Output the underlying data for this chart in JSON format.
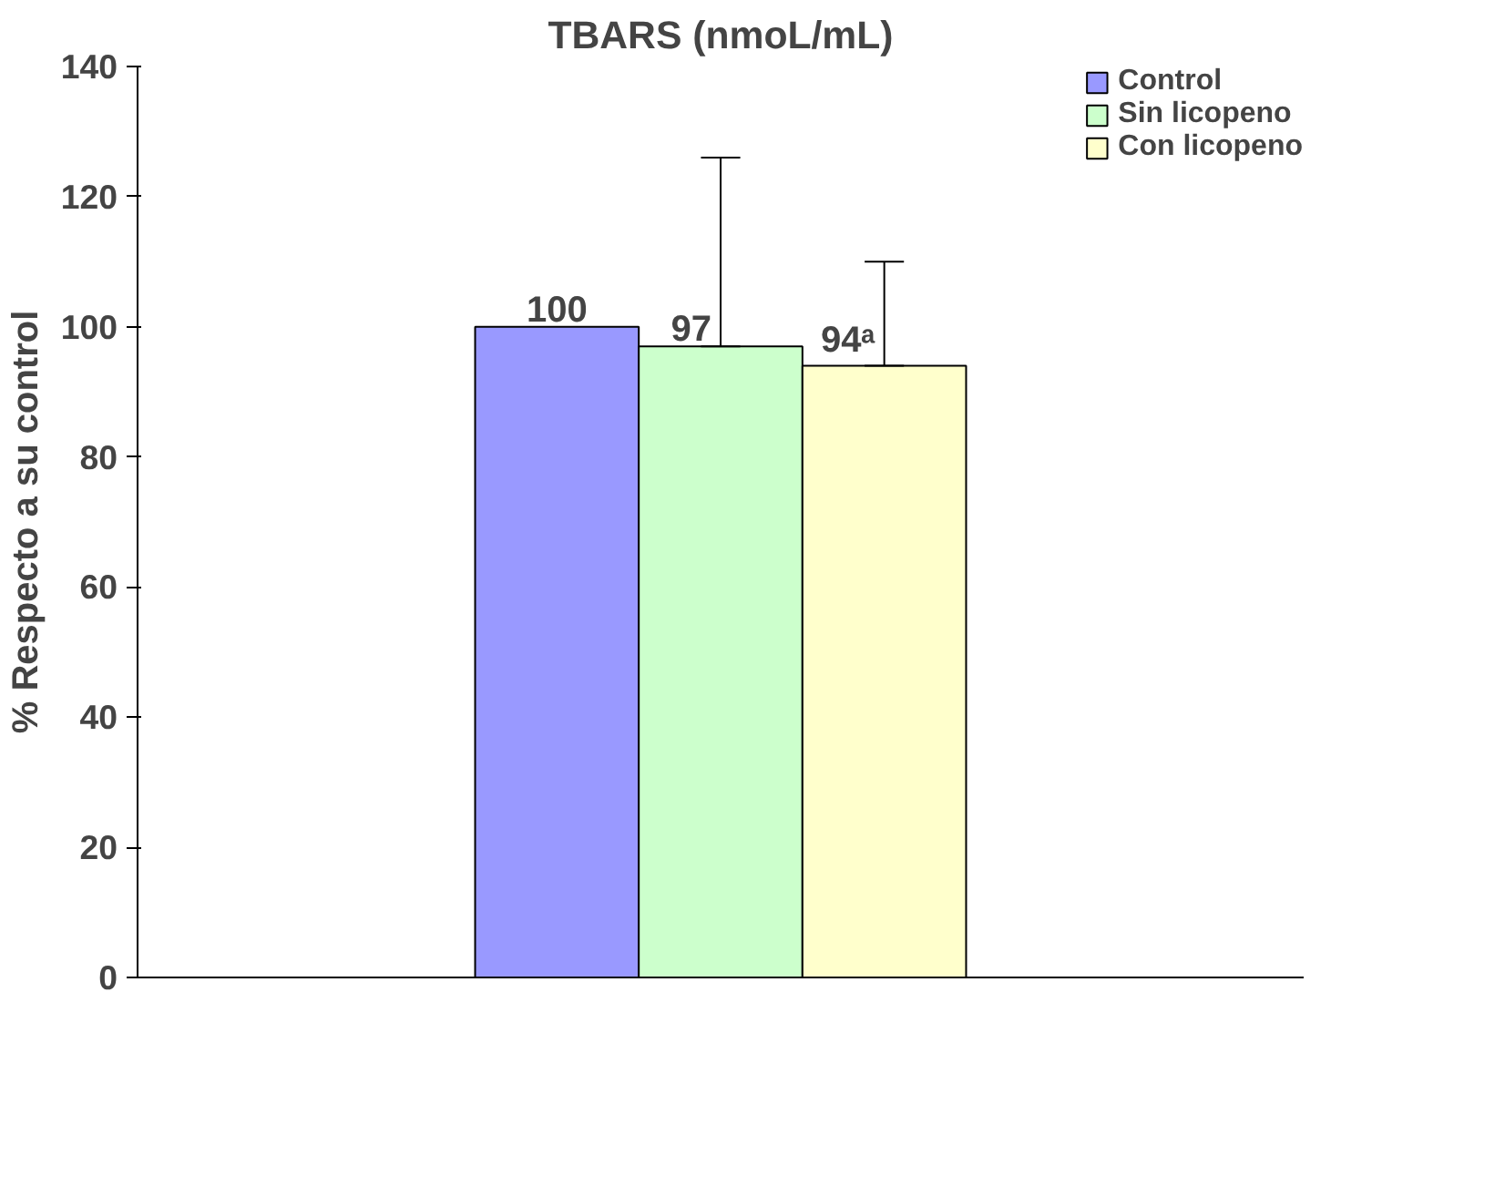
{
  "chart_data": {
    "type": "bar",
    "title": "TBARS (nmoL/mL)",
    "ylabel": "% Respecto a su control",
    "categories": [
      null
    ],
    "series": [
      {
        "name": "Control",
        "color": "#9999ff",
        "values": [
          100
        ],
        "value_labels": [
          "100"
        ]
      },
      {
        "name": "Sin licopeno",
        "color": "#ccffcc",
        "values": [
          97
        ],
        "errors": [
          [
            97,
            126
          ]
        ],
        "value_labels": [
          "97"
        ]
      },
      {
        "name": "Con licopeno",
        "color": "#ffffcc",
        "values": [
          94
        ],
        "errors": [
          [
            94,
            110
          ]
        ],
        "value_labels": [
          "94ᵃ"
        ]
      }
    ],
    "ylim": [
      0,
      140
    ],
    "yticks": [
      0,
      20,
      40,
      60,
      80,
      100,
      120,
      140
    ],
    "grid": false,
    "legend": "top right"
  }
}
